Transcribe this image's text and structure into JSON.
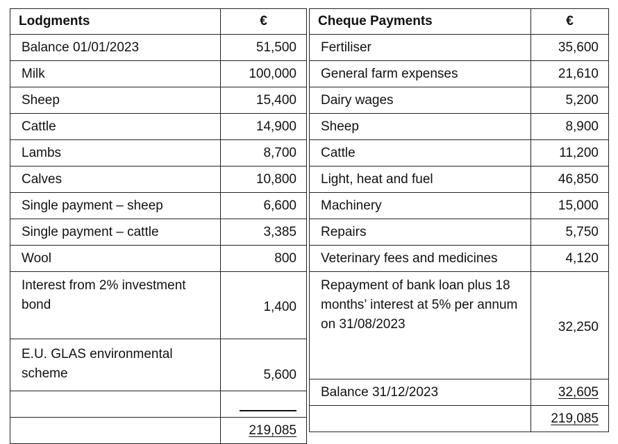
{
  "lodgments": {
    "header": "Lodgments",
    "currency": "€",
    "rows": [
      {
        "label": "Balance 01/01/2023",
        "amount": "51,500"
      },
      {
        "label": "Milk",
        "amount": "100,000"
      },
      {
        "label": "Sheep",
        "amount": "15,400"
      },
      {
        "label": "Cattle",
        "amount": "14,900"
      },
      {
        "label": "Lambs",
        "amount": "8,700"
      },
      {
        "label": "Calves",
        "amount": "10,800"
      },
      {
        "label": "Single payment – sheep",
        "amount": "6,600"
      },
      {
        "label": "Single payment – cattle",
        "amount": "3,385"
      },
      {
        "label": "Wool",
        "amount": "800"
      },
      {
        "label": "Interest from 2% investment bond",
        "amount": "1,400"
      },
      {
        "label": "E.U. GLAS environmental scheme",
        "amount": "5,600"
      }
    ],
    "total": "219,085"
  },
  "cheque_payments": {
    "header": "Cheque Payments",
    "currency": "€",
    "rows": [
      {
        "label": "Fertiliser",
        "amount": "35,600"
      },
      {
        "label": "General farm expenses",
        "amount": "21,610"
      },
      {
        "label": "Dairy wages",
        "amount": "5,200"
      },
      {
        "label": "Sheep",
        "amount": "8,900"
      },
      {
        "label": "Cattle",
        "amount": "11,200"
      },
      {
        "label": "Light, heat and fuel",
        "amount": "46,850"
      },
      {
        "label": "Machinery",
        "amount": "15,000"
      },
      {
        "label": "Repairs",
        "amount": "5,750"
      },
      {
        "label": "Veterinary fees and medicines",
        "amount": "4,120"
      },
      {
        "label": "Repayment of bank loan plus 18 months’ interest at 5% per annum on 31/08/2023",
        "amount": "32,250"
      }
    ],
    "balance": {
      "label": "Balance 31/12/2023",
      "amount": "32,605"
    },
    "total": "219,085"
  }
}
